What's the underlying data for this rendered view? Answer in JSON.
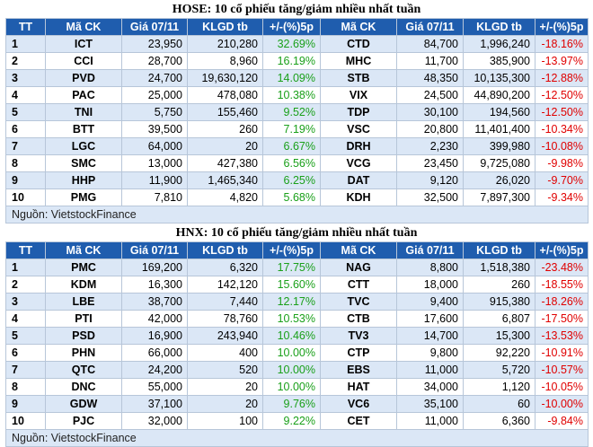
{
  "hose": {
    "title": "HOSE: 10 cổ phiếu tăng/giảm nhiều nhất tuần",
    "headers": [
      "TT",
      "Mã CK",
      "Giá 07/11",
      "KLGD tb",
      "+/-(%)5p",
      "Mã CK",
      "Giá 07/11",
      "KLGD tb",
      "+/-(%)5p"
    ],
    "rows": [
      [
        "1",
        "ICT",
        "23,950",
        "210,280",
        "32.69%",
        "CTD",
        "84,700",
        "1,996,240",
        "-18.16%"
      ],
      [
        "2",
        "CCI",
        "28,700",
        "8,960",
        "16.19%",
        "MHC",
        "11,700",
        "385,900",
        "-13.97%"
      ],
      [
        "3",
        "PVD",
        "24,700",
        "19,630,120",
        "14.09%",
        "STB",
        "48,350",
        "10,135,300",
        "-12.88%"
      ],
      [
        "4",
        "PAC",
        "25,000",
        "478,080",
        "10.38%",
        "VIX",
        "24,500",
        "44,890,200",
        "-12.50%"
      ],
      [
        "5",
        "TNI",
        "5,750",
        "155,460",
        "9.52%",
        "TDP",
        "30,100",
        "194,560",
        "-12.50%"
      ],
      [
        "6",
        "BTT",
        "39,500",
        "260",
        "7.19%",
        "VSC",
        "20,800",
        "11,401,400",
        "-10.34%"
      ],
      [
        "7",
        "LGC",
        "64,000",
        "20",
        "6.67%",
        "DRH",
        "2,230",
        "399,980",
        "-10.08%"
      ],
      [
        "8",
        "SMC",
        "13,000",
        "427,380",
        "6.56%",
        "VCG",
        "23,450",
        "9,725,080",
        "-9.98%"
      ],
      [
        "9",
        "HHP",
        "11,900",
        "1,465,340",
        "6.25%",
        "DAT",
        "9,120",
        "26,020",
        "-9.70%"
      ],
      [
        "10",
        "PMG",
        "7,810",
        "4,820",
        "5.68%",
        "KDH",
        "32,500",
        "7,897,300",
        "-9.34%"
      ]
    ],
    "source": "Nguồn: VietstockFinance"
  },
  "hnx": {
    "title": "HNX: 10 cổ phiếu tăng/giảm nhiều nhất tuần",
    "headers": [
      "TT",
      "Mã CK",
      "Giá 07/11",
      "KLGD tb",
      "+/-(%)5p",
      "Mã CK",
      "Giá 07/11",
      "KLGD tb",
      "+/-(%)5p"
    ],
    "rows": [
      [
        "1",
        "PMC",
        "169,200",
        "6,320",
        "17.75%",
        "NAG",
        "8,800",
        "1,518,380",
        "-23.48%"
      ],
      [
        "2",
        "KDM",
        "16,300",
        "142,120",
        "15.60%",
        "CTT",
        "18,000",
        "260",
        "-18.55%"
      ],
      [
        "3",
        "LBE",
        "38,700",
        "7,440",
        "12.17%",
        "TVC",
        "9,400",
        "915,380",
        "-18.26%"
      ],
      [
        "4",
        "PTI",
        "42,000",
        "78,760",
        "10.53%",
        "CTB",
        "17,600",
        "6,807",
        "-17.50%"
      ],
      [
        "5",
        "PSD",
        "16,900",
        "243,940",
        "10.46%",
        "TV3",
        "14,700",
        "15,300",
        "-13.53%"
      ],
      [
        "6",
        "PHN",
        "66,000",
        "400",
        "10.00%",
        "CTP",
        "9,800",
        "92,220",
        "-10.91%"
      ],
      [
        "7",
        "QTC",
        "24,200",
        "520",
        "10.00%",
        "EBS",
        "11,000",
        "5,720",
        "-10.57%"
      ],
      [
        "8",
        "DNC",
        "55,000",
        "20",
        "10.00%",
        "HAT",
        "34,000",
        "1,120",
        "-10.05%"
      ],
      [
        "9",
        "GDW",
        "37,100",
        "20",
        "9.76%",
        "VC6",
        "35,100",
        "60",
        "-10.00%"
      ],
      [
        "10",
        "PJC",
        "32,000",
        "100",
        "9.22%",
        "CET",
        "11,000",
        "6,360",
        "-9.84%"
      ]
    ],
    "source": "Nguồn: VietstockFinance"
  },
  "colors": {
    "header_bg": "#1f5dae",
    "row_alt": "#dbe7f6",
    "gain": "#1aa01a",
    "loss": "#e00000"
  }
}
